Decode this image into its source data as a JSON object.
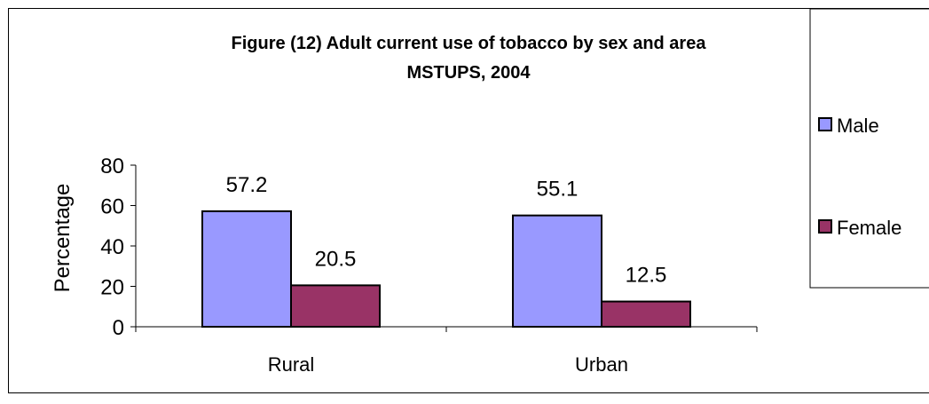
{
  "chart_data": {
    "type": "bar",
    "title": "Figure (12) Adult current use of tobacco by sex and area",
    "subtitle": "MSTUPS, 2004",
    "xlabel": "",
    "ylabel": "Percentage",
    "categories": [
      "Rural",
      "Urban"
    ],
    "series": [
      {
        "name": "Male",
        "values": [
          57.2,
          55.1
        ],
        "color": "#9999ff"
      },
      {
        "name": "Female",
        "values": [
          20.5,
          12.5
        ],
        "color": "#993366"
      }
    ],
    "ylim": [
      0,
      80
    ],
    "yticks": [
      0,
      20,
      40,
      60,
      80
    ],
    "grid": false,
    "legend_position": "right",
    "data_labels": [
      "57.2",
      "20.5",
      "55.1",
      "12.5"
    ]
  }
}
